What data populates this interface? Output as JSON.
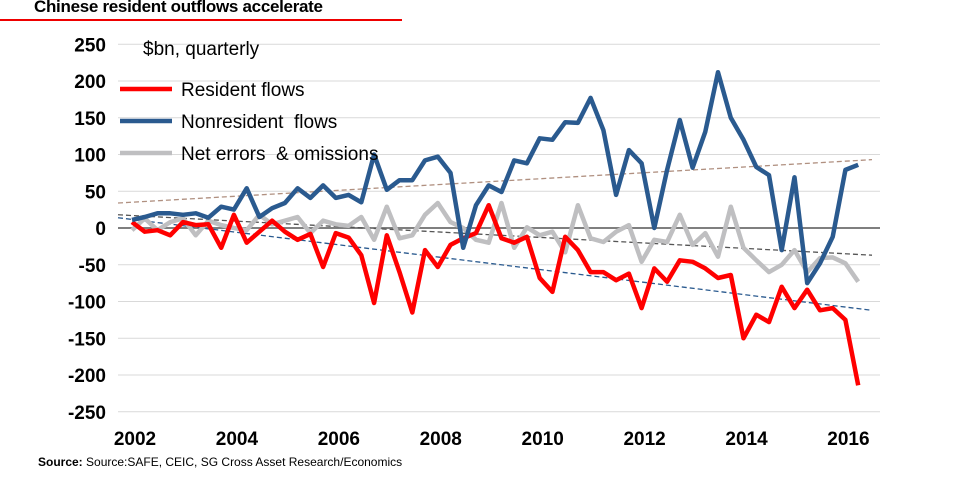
{
  "title": "Chinese resident outflows accelerate",
  "source_label": "Source:",
  "source_text": " Source:SAFE, CEIC, SG Cross Asset Research/Economics",
  "chart_data": {
    "type": "line",
    "title": "Chinese resident outflows accelerate",
    "subtitle": "$bn, quarterly",
    "ylim": [
      -250,
      250
    ],
    "y_ticks": [
      250,
      200,
      150,
      100,
      50,
      0,
      -50,
      -100,
      -150,
      -200,
      -250
    ],
    "x_ticks": [
      "2002",
      "2004",
      "2006",
      "2008",
      "2010",
      "2012",
      "2014",
      "2016"
    ],
    "x_start": "2002Q1",
    "frequency": "quarterly",
    "grid": true,
    "legend": "top-left",
    "series": [
      {
        "name": "Resident flows",
        "color": "#ff0000",
        "values": [
          8,
          -5,
          -3,
          -10,
          8,
          4,
          5,
          -27,
          18,
          -20,
          -5,
          10,
          -5,
          -16,
          -8,
          -53,
          -7,
          -13,
          -37,
          -102,
          -10,
          -60,
          -115,
          -30,
          -53,
          -23,
          -14,
          -7,
          31,
          -14,
          -20,
          -12,
          -68,
          -87,
          -12,
          -30,
          -60,
          -60,
          -71,
          -62,
          -109,
          -55,
          -73,
          -44,
          -46,
          -55,
          -68,
          -64,
          -150,
          -118,
          -128,
          -80,
          -109,
          -84,
          -112,
          -109,
          -125,
          -214
        ]
      },
      {
        "name": "Nonresident  flows",
        "color": "#2a5a8f",
        "values": [
          11,
          15,
          20,
          20,
          18,
          20,
          14,
          29,
          25,
          54,
          15,
          27,
          34,
          54,
          41,
          58,
          41,
          45,
          35,
          100,
          52,
          65,
          65,
          92,
          97,
          75,
          -27,
          31,
          58,
          49,
          92,
          88,
          122,
          120,
          144,
          143,
          177,
          133,
          45,
          106,
          88,
          0,
          79,
          147,
          82,
          131,
          212,
          150,
          120,
          83,
          72,
          -30,
          69,
          -75,
          -48,
          -12,
          79,
          86
        ]
      },
      {
        "name": "Net errors  & omissions",
        "color": "#bfbfc1",
        "values": [
          -3,
          13,
          -3,
          8,
          13,
          -10,
          10,
          4,
          0,
          -3,
          18,
          5,
          10,
          15,
          -7,
          10,
          5,
          3,
          15,
          -16,
          29,
          -14,
          -10,
          18,
          34,
          8,
          0,
          -16,
          -20,
          34,
          -27,
          1,
          -10,
          -5,
          -33,
          31,
          -14,
          -19,
          -5,
          4,
          -46,
          -16,
          -19,
          18,
          -23,
          -7,
          -39,
          29,
          -27,
          -44,
          -60,
          -50,
          -30,
          -60,
          -41,
          -40,
          -48,
          -73
        ]
      }
    ],
    "trendlines": [
      {
        "series": "Nonresident  flows",
        "color": "#b09080",
        "start": 34,
        "end": 93
      },
      {
        "series": "Net errors  & omissions",
        "color": "#555555",
        "start": 18,
        "end": -37
      },
      {
        "series": "Resident flows",
        "color": "#2a5a8f",
        "start": 14,
        "end": -112
      }
    ]
  }
}
